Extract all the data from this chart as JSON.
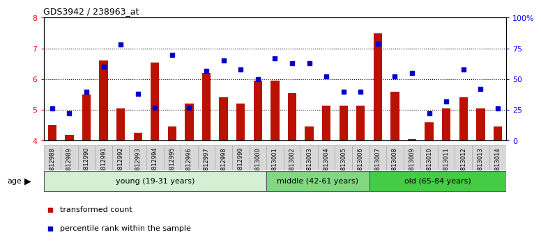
{
  "title": "GDS3942 / 238963_at",
  "samples": [
    "GSM812988",
    "GSM812989",
    "GSM812990",
    "GSM812991",
    "GSM812992",
    "GSM812993",
    "GSM812994",
    "GSM812995",
    "GSM812996",
    "GSM812997",
    "GSM812998",
    "GSM812999",
    "GSM813000",
    "GSM813001",
    "GSM813002",
    "GSM813003",
    "GSM813004",
    "GSM813005",
    "GSM813006",
    "GSM813007",
    "GSM813008",
    "GSM813009",
    "GSM813010",
    "GSM813011",
    "GSM813012",
    "GSM813013",
    "GSM813014"
  ],
  "transformed_count": [
    4.5,
    4.2,
    5.5,
    6.6,
    5.05,
    4.25,
    6.55,
    4.45,
    5.2,
    6.2,
    5.4,
    5.2,
    5.95,
    5.95,
    5.55,
    4.45,
    5.15,
    5.15,
    5.15,
    7.5,
    5.6,
    4.05,
    4.6,
    5.05,
    5.4,
    5.05,
    4.45
  ],
  "percentile_rank": [
    26,
    22,
    40,
    60,
    78,
    38,
    27,
    70,
    27,
    57,
    65,
    58,
    50,
    67,
    63,
    63,
    52,
    40,
    40,
    79,
    52,
    55,
    22,
    32,
    58,
    42,
    26
  ],
  "groups": [
    {
      "label": "young (19-31 years)",
      "start": 0,
      "end": 13,
      "color": "#d4f0d4"
    },
    {
      "label": "middle (42-61 years)",
      "start": 13,
      "end": 19,
      "color": "#80d880"
    },
    {
      "label": "old (65-84 years)",
      "start": 19,
      "end": 27,
      "color": "#44cc44"
    }
  ],
  "ylim_left": [
    4.0,
    8.0
  ],
  "ylim_right": [
    0,
    100
  ],
  "yticks_left": [
    4,
    5,
    6,
    7,
    8
  ],
  "yticks_right": [
    0,
    25,
    50,
    75,
    100
  ],
  "ytick_labels_right": [
    "0",
    "25",
    "50",
    "75",
    "100%"
  ],
  "bar_color": "#bb1100",
  "dot_color": "#0000cc",
  "xlabel": "age",
  "legend": [
    {
      "label": "transformed count",
      "color": "#bb1100"
    },
    {
      "label": "percentile rank within the sample",
      "color": "#0000cc"
    }
  ]
}
